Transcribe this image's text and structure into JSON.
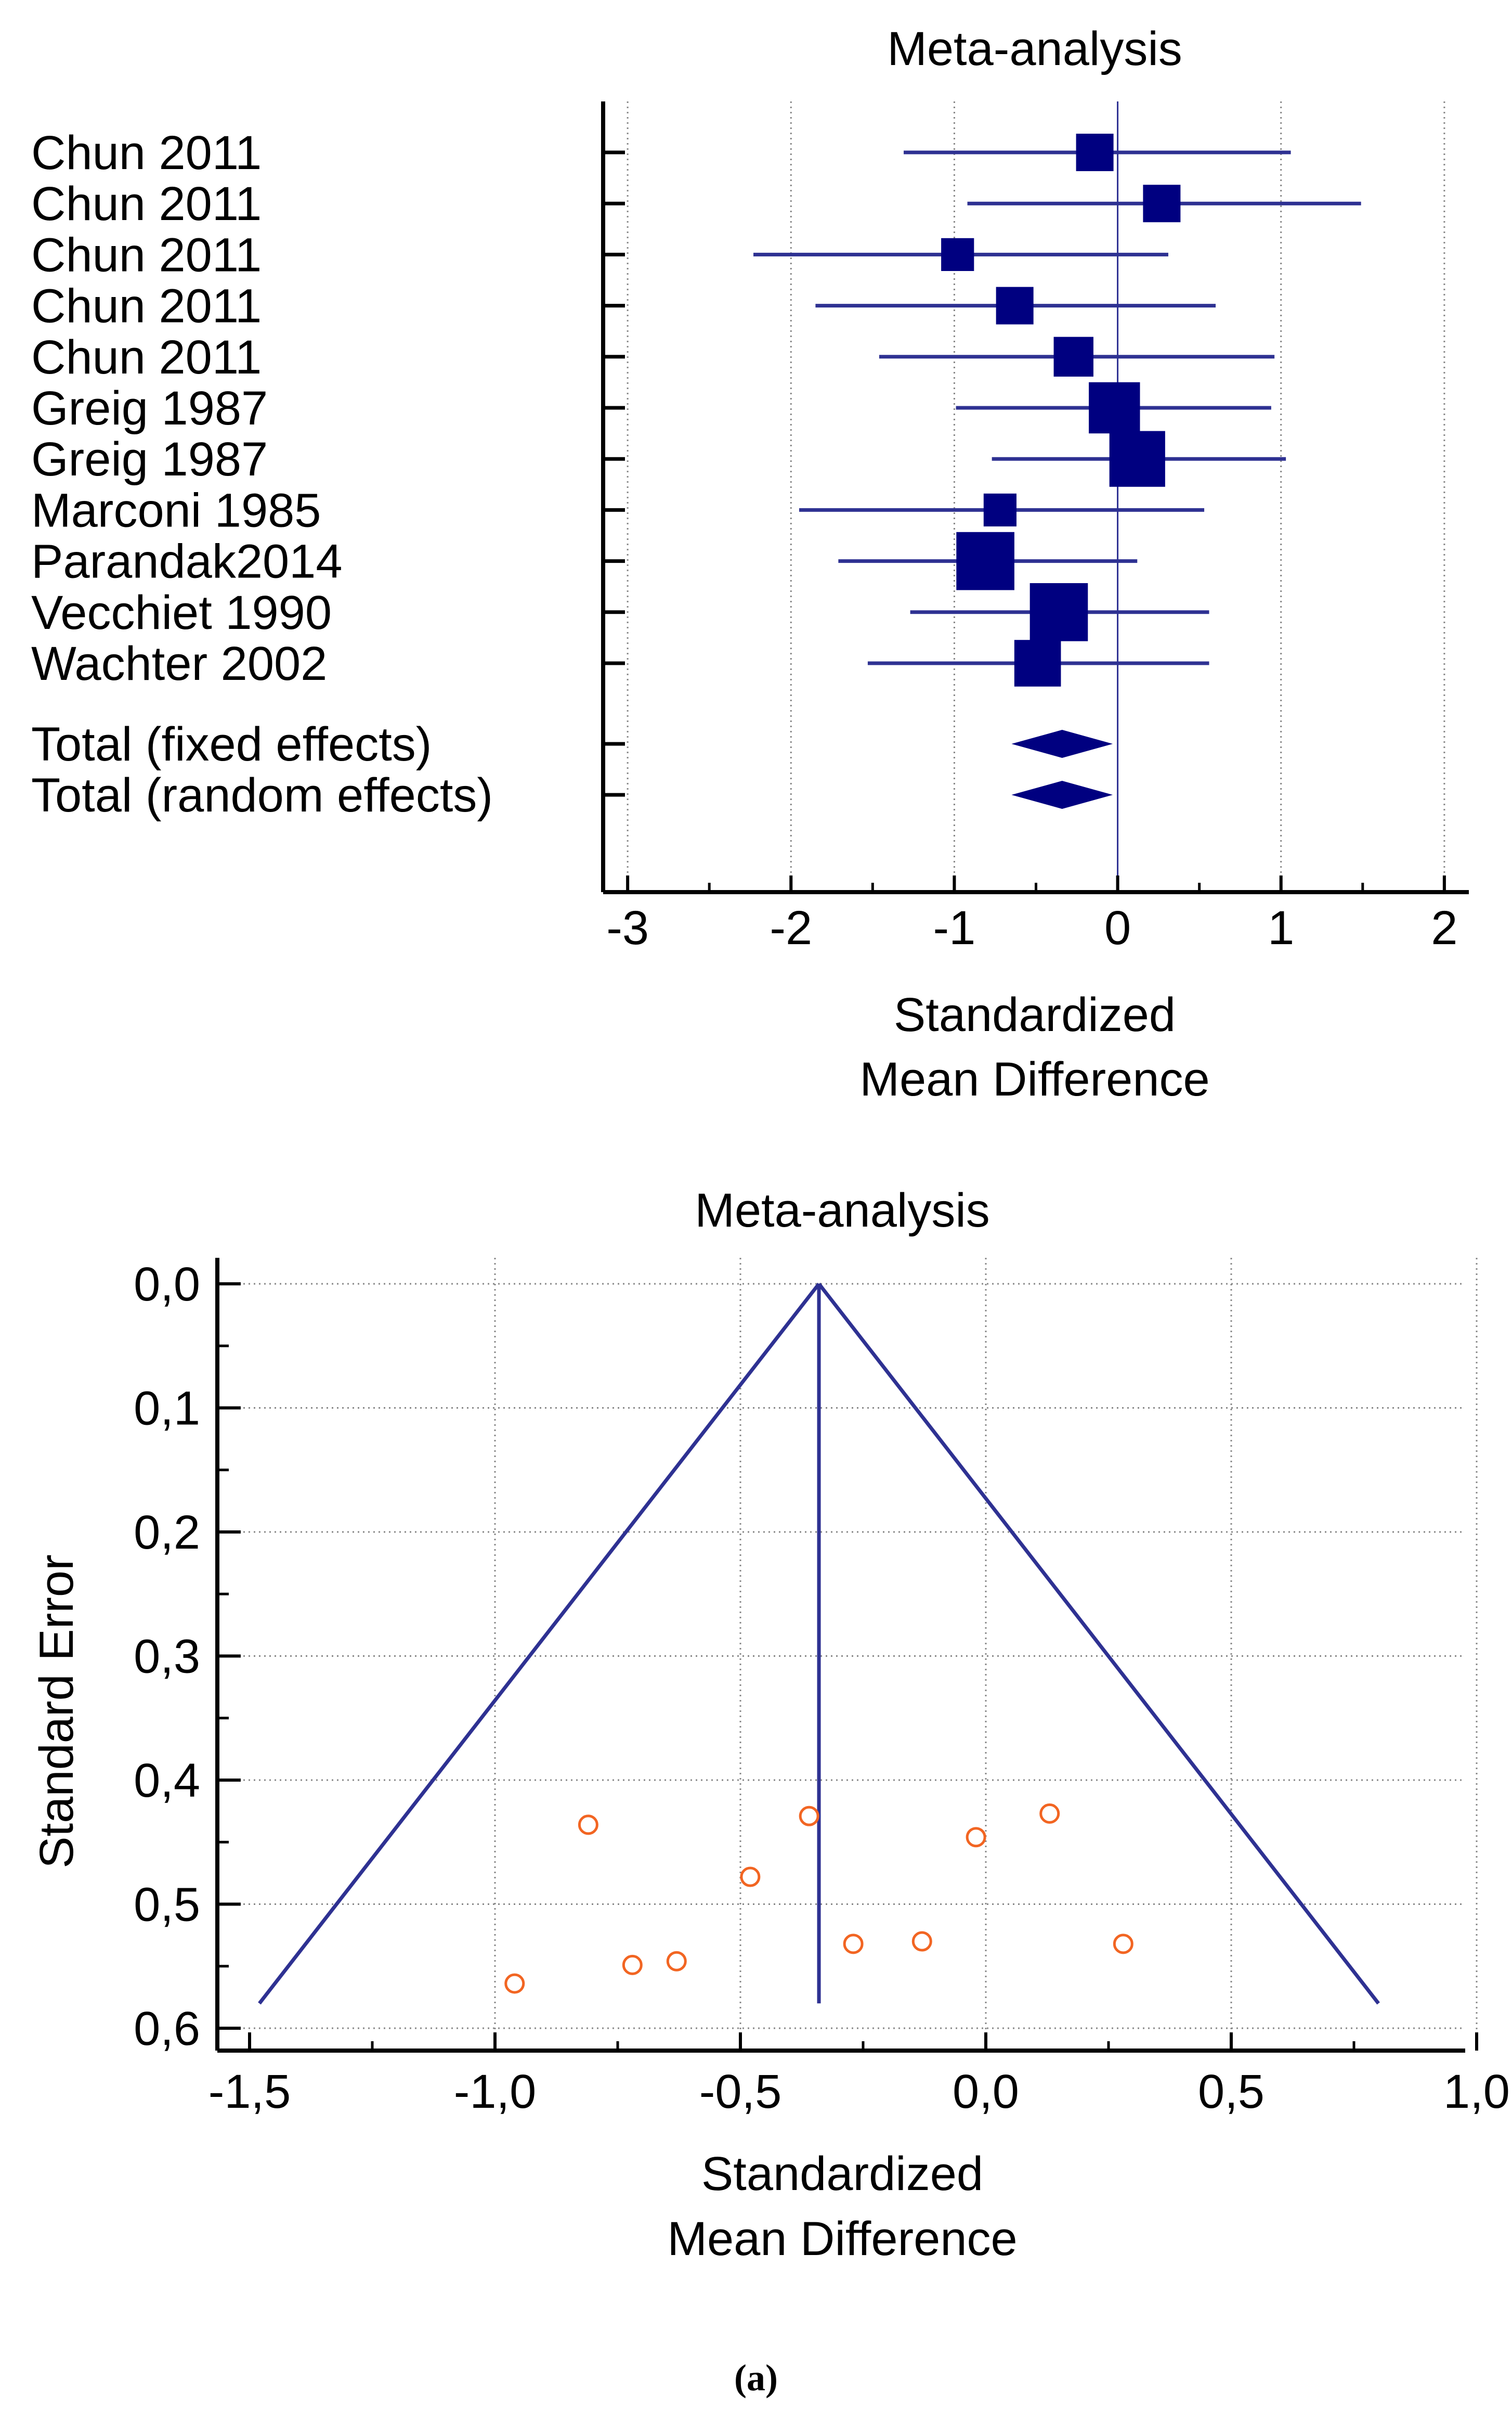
{
  "chart_data": [
    {
      "type": "forest",
      "title": "Meta-analysis",
      "xlabel_lines": [
        "Standardized",
        "Mean Difference"
      ],
      "xlim": [
        -3.15,
        2.15
      ],
      "xticks": [
        -3,
        -2,
        -1,
        0,
        1,
        2
      ],
      "xtick_labels": [
        "-3",
        "-2",
        "-1",
        "0",
        "1",
        "2"
      ],
      "studies": [
        {
          "label": "Chun 2011",
          "smd": -0.14,
          "lower": -1.31,
          "upper": 1.06,
          "weight": 1
        },
        {
          "label": "Chun 2011",
          "smd": 0.27,
          "lower": -0.92,
          "upper": 1.49,
          "weight": 1
        },
        {
          "label": "Chun 2011",
          "smd": -0.98,
          "lower": -2.23,
          "upper": 0.31,
          "weight": 0.8
        },
        {
          "label": "Chun 2011",
          "smd": -0.63,
          "lower": -1.85,
          "upper": 0.6,
          "weight": 1
        },
        {
          "label": "Chun 2011",
          "smd": -0.27,
          "lower": -1.46,
          "upper": 0.96,
          "weight": 1.1
        },
        {
          "label": "Greig 1987",
          "smd": -0.02,
          "lower": -0.99,
          "upper": 0.94,
          "weight": 1.6
        },
        {
          "label": "Greig 1987",
          "smd": 0.12,
          "lower": -0.77,
          "upper": 1.03,
          "weight": 1.8
        },
        {
          "label": "Marconi 1985",
          "smd": -0.72,
          "lower": -1.95,
          "upper": 0.53,
          "weight": 0.8
        },
        {
          "label": "Parandak2014",
          "smd": -0.81,
          "lower": -1.71,
          "upper": 0.12,
          "weight": 1.9
        },
        {
          "label": "Vecchiet 1990",
          "smd": -0.36,
          "lower": -1.27,
          "upper": 0.56,
          "weight": 1.9
        },
        {
          "label": "Wachter 2002",
          "smd": -0.49,
          "lower": -1.53,
          "upper": 0.56,
          "weight": 1.4
        }
      ],
      "totals": [
        {
          "label": "Total (fixed effects)",
          "smd": -0.34,
          "lower": -0.65,
          "upper": -0.03
        },
        {
          "label": "Total (random effects)",
          "smd": -0.34,
          "lower": -0.65,
          "upper": -0.03
        }
      ],
      "grid": true
    },
    {
      "type": "scatter",
      "title": "Meta-analysis",
      "ylabel": "Standard Error",
      "xlabel_lines": [
        "Standardized",
        "Mean Difference"
      ],
      "xlim": [
        -1.55,
        1.05
      ],
      "ylim": [
        0.0,
        0.62
      ],
      "xticks": [
        -1.5,
        -1.0,
        -0.5,
        0.0,
        0.5,
        1.0
      ],
      "xtick_labels": [
        "-1,5",
        "-1,0",
        "-0,5",
        "0,0",
        "0,5",
        "1,0"
      ],
      "yticks": [
        0.0,
        0.1,
        0.2,
        0.3,
        0.4,
        0.5,
        0.6
      ],
      "ytick_labels": [
        "0,0",
        "0,1",
        "0,2",
        "0,3",
        "0,4",
        "0,5",
        "0,6"
      ],
      "pooled_smd": -0.34,
      "funnel_base_se": 0.58,
      "funnel_left_x": -1.48,
      "funnel_right_x": 0.8,
      "points": [
        {
          "x": -0.81,
          "y": 0.436
        },
        {
          "x": -0.36,
          "y": 0.429
        },
        {
          "x": 0.13,
          "y": 0.427
        },
        {
          "x": -0.02,
          "y": 0.446
        },
        {
          "x": -0.48,
          "y": 0.478
        },
        {
          "x": -0.27,
          "y": 0.532
        },
        {
          "x": -0.13,
          "y": 0.53
        },
        {
          "x": 0.28,
          "y": 0.532
        },
        {
          "x": -0.63,
          "y": 0.546
        },
        {
          "x": -0.72,
          "y": 0.549
        },
        {
          "x": -0.96,
          "y": 0.564
        }
      ],
      "grid": true
    }
  ],
  "caption": "(a)",
  "colors": {
    "series": "#2e3192",
    "marker": "#000080",
    "points": "#f26522",
    "grid": "#888888"
  }
}
